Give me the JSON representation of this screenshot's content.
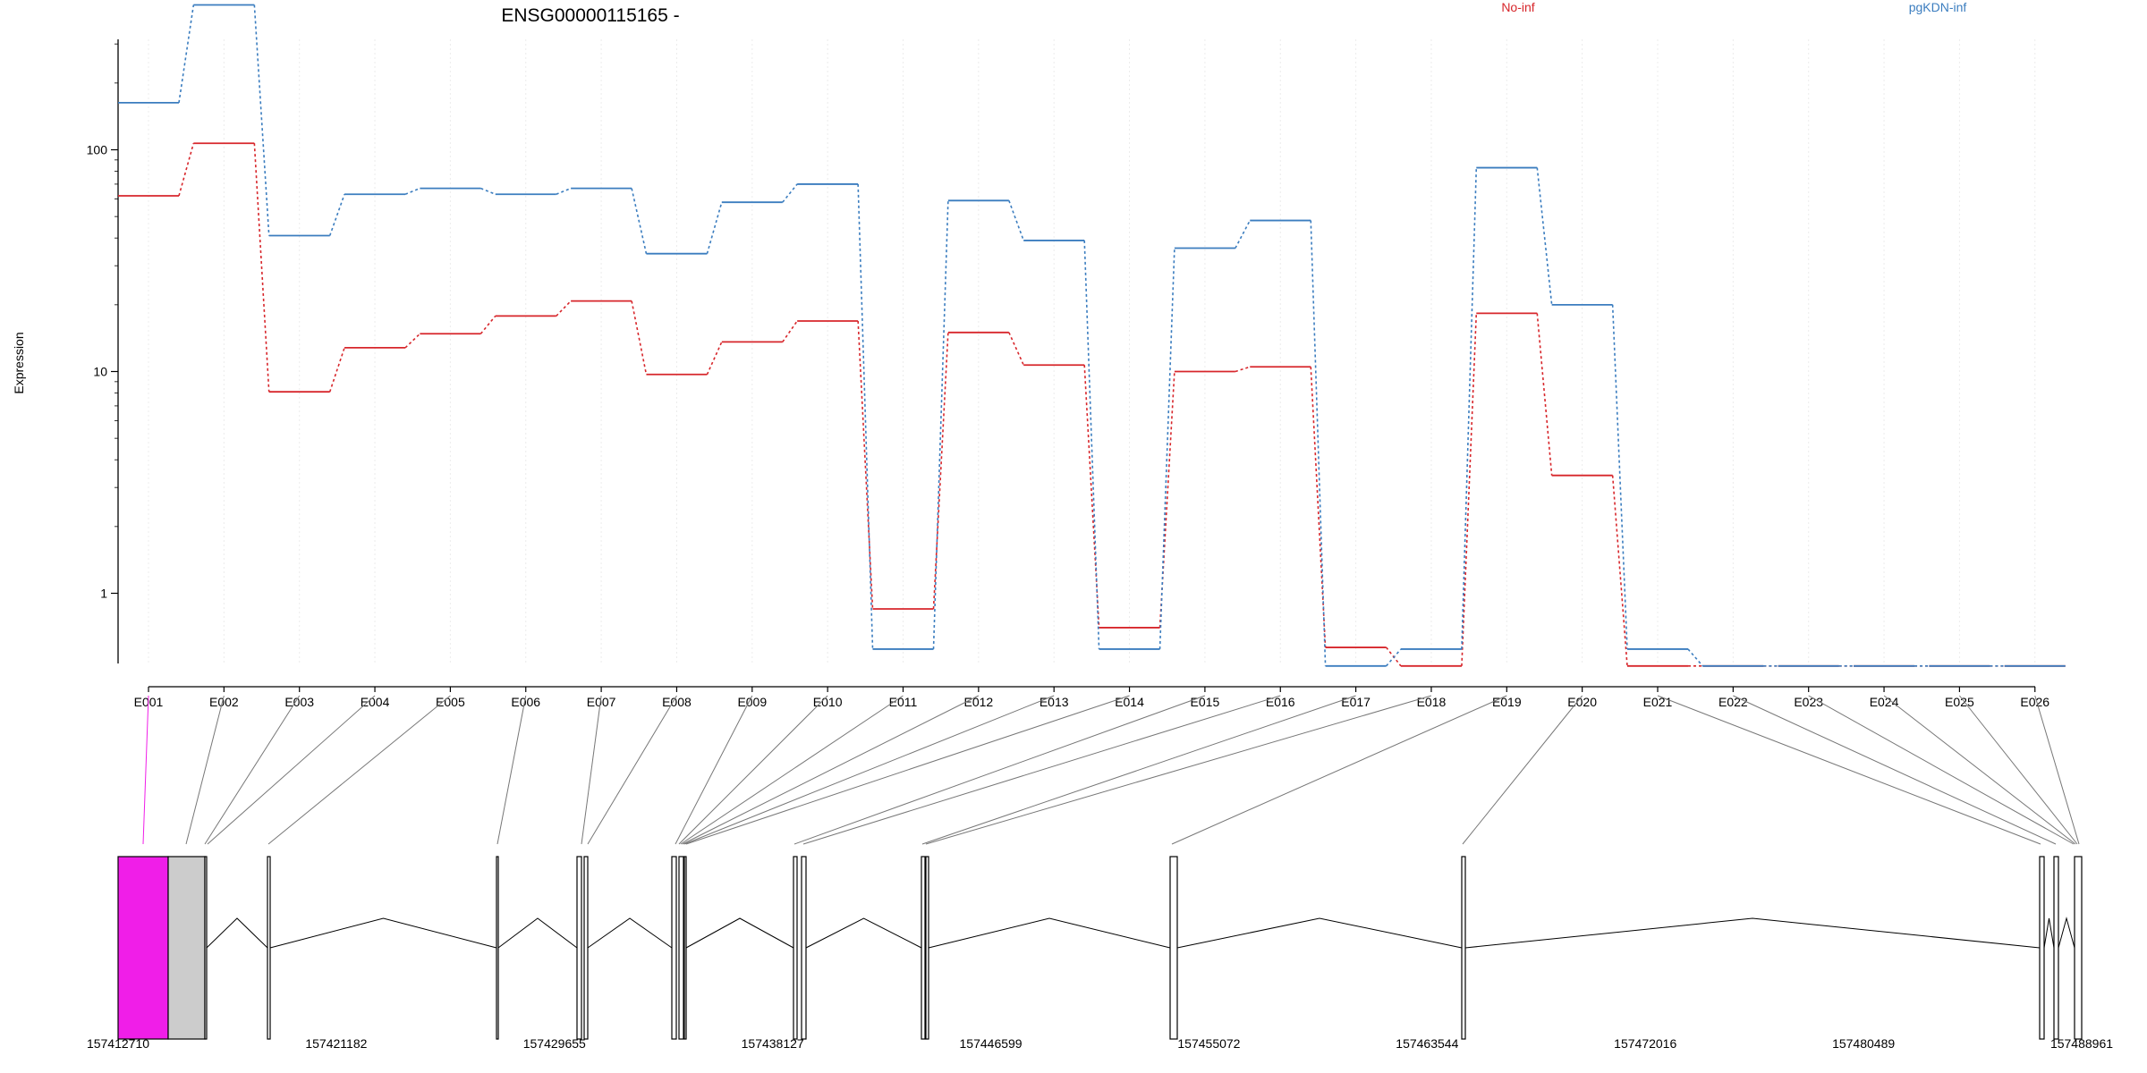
{
  "chart_data": {
    "type": "line",
    "title": "ENSG00000115165 -",
    "ylabel": "Expression",
    "xlabel": "",
    "y_scale": "log",
    "y_ticks": [
      {
        "value": 1,
        "label": "1"
      },
      {
        "value": 10,
        "label": "10"
      },
      {
        "value": 100,
        "label": "100"
      }
    ],
    "grid": "vertical, light",
    "legend_position": "top-right",
    "categories": [
      "E001",
      "E002",
      "E003",
      "E004",
      "E005",
      "E006",
      "E007",
      "E008",
      "E009",
      "E010",
      "E011",
      "E012",
      "E013",
      "E014",
      "E015",
      "E016",
      "E017",
      "E018",
      "E019",
      "E020",
      "E021",
      "E022",
      "E023",
      "E024",
      "E025",
      "E026"
    ],
    "series": [
      {
        "name": "No-inf",
        "color": "#d7262b",
        "values": [
          62,
          107,
          8.1,
          12.8,
          14.8,
          17.8,
          20.8,
          9.7,
          13.6,
          16.9,
          0.85,
          15.0,
          10.7,
          0.7,
          10.0,
          10.5,
          0.57,
          0.47,
          18.3,
          3.4,
          0.47,
          0.47,
          0.47,
          0.47,
          0.47,
          0.47
        ]
      },
      {
        "name": "pgKDN-inf",
        "color": "#3b7dbf",
        "values": [
          163,
          450,
          41,
          63,
          67,
          63,
          67,
          34,
          58,
          70,
          0.56,
          59,
          39,
          0.56,
          36,
          48,
          0.47,
          0.56,
          83,
          20,
          0.56,
          0.47,
          0.47,
          0.47,
          0.47,
          0.47
        ]
      }
    ],
    "gene_model": {
      "coordinate_ticks": [
        "157412710",
        "157421182",
        "157429655",
        "157438127",
        "157446599",
        "157455072",
        "157463544",
        "157472016",
        "157480489",
        "157488961"
      ],
      "highlight_color": "#f01ee8"
    }
  }
}
